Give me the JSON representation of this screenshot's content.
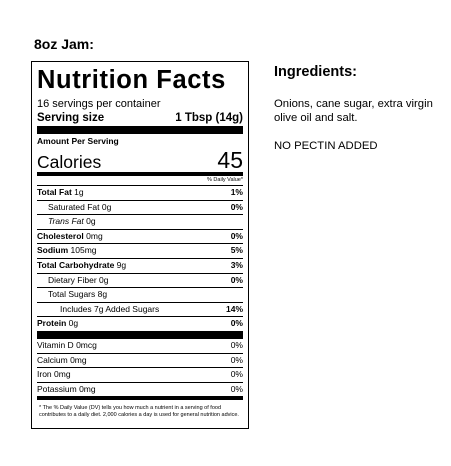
{
  "heading": "8oz Jam:",
  "label": {
    "title": "Nutrition Facts",
    "servings": "16 servings per container",
    "serving_size_label": "Serving size",
    "serving_size_value": "1 Tbsp (14g)",
    "amount_per_serving": "Amount Per Serving",
    "calories_label": "Calories",
    "calories_value": "45",
    "dv_header": "% Daily Value*",
    "rows": [
      {
        "name": "Total Fat",
        "amount": "1g",
        "dv": "1%"
      },
      {
        "name": "Saturated Fat",
        "amount": "0g",
        "dv": "0%"
      },
      {
        "name": "Trans Fat",
        "amount": "0g",
        "dv": ""
      },
      {
        "name": "Cholesterol",
        "amount": "0mg",
        "dv": "0%"
      },
      {
        "name": "Sodium",
        "amount": "105mg",
        "dv": "5%"
      },
      {
        "name": "Total Carbohydrate",
        "amount": "9g",
        "dv": "3%"
      },
      {
        "name": "Dietary Fiber",
        "amount": "0g",
        "dv": "0%"
      },
      {
        "name": "Total Sugars",
        "amount": "8g",
        "dv": ""
      },
      {
        "name": "Includes 7g Added Sugars",
        "amount": "",
        "dv": "14%"
      },
      {
        "name": "Protein",
        "amount": "0g",
        "dv": "0%"
      }
    ],
    "vitamins": [
      {
        "name": "Vitamin D",
        "amount": "0mcg",
        "dv": "0%"
      },
      {
        "name": "Calcium",
        "amount": "0mg",
        "dv": "0%"
      },
      {
        "name": "Iron",
        "amount": "0mg",
        "dv": "0%"
      },
      {
        "name": "Potassium",
        "amount": "0mg",
        "dv": "0%"
      }
    ],
    "footnote": "* The % Daily Value (DV) tells you how much a nutrient in a serving of food contributes to a daily diet. 2,000 calories a day is used for general nutrition advice."
  },
  "ingredients": {
    "title": "Ingredients:",
    "text": "Onions, cane sugar, extra virgin olive oil and salt.",
    "note": "NO PECTIN ADDED"
  }
}
